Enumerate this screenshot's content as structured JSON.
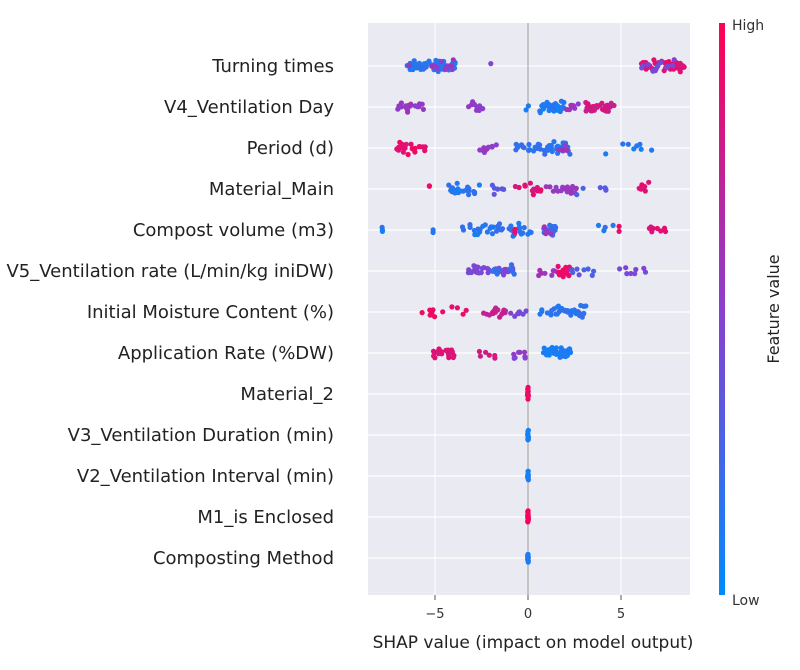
{
  "chart_data": {
    "type": "scatter",
    "subtype": "shap-beeswarm",
    "title": "",
    "xlabel": "SHAP value (impact on model output)",
    "xlim": [
      -8.7,
      9.1
    ],
    "x_ticks": [
      -5,
      0,
      5
    ],
    "x_tick_labels": [
      "−5",
      "0",
      "5"
    ],
    "grid": true,
    "colorbar": {
      "title": "Feature value",
      "high_label": "High",
      "low_label": "Low",
      "low_color": "#008bfb",
      "high_color": "#ff0052"
    },
    "features": [
      {
        "name": "Turning times",
        "points": [
          {
            "range": [
              -6.5,
              -3.9
            ],
            "n": 60,
            "t": 0.15
          },
          {
            "range": [
              -6.5,
              -3.9
            ],
            "n": 12,
            "t": 0.55
          },
          {
            "range": [
              -2.0,
              -2.0
            ],
            "n": 1,
            "t": 0.5
          },
          {
            "range": [
              6.1,
              8.4
            ],
            "n": 55,
            "t": 0.85
          },
          {
            "range": [
              6.1,
              8.4
            ],
            "n": 12,
            "t": 0.45
          }
        ]
      },
      {
        "name": "V4_Ventilation Day",
        "points": [
          {
            "range": [
              -7.0,
              -5.3
            ],
            "n": 18,
            "t": 0.55
          },
          {
            "range": [
              -3.2,
              -2.3
            ],
            "n": 10,
            "t": 0.55
          },
          {
            "range": [
              -0.5,
              0.5
            ],
            "n": 2,
            "t": 0.1
          },
          {
            "range": [
              0.6,
              2.0
            ],
            "n": 30,
            "t": 0.1
          },
          {
            "range": [
              2.0,
              3.0
            ],
            "n": 8,
            "t": 0.55
          },
          {
            "range": [
              3.0,
              4.7
            ],
            "n": 34,
            "t": 0.8
          }
        ]
      },
      {
        "name": "Period (d)",
        "points": [
          {
            "range": [
              -7.1,
              -5.5
            ],
            "n": 22,
            "t": 0.9
          },
          {
            "range": [
              -2.6,
              -1.7
            ],
            "n": 10,
            "t": 0.55
          },
          {
            "range": [
              -0.7,
              0.3
            ],
            "n": 10,
            "t": 0.2
          },
          {
            "range": [
              0.3,
              2.3
            ],
            "n": 34,
            "t": 0.15
          },
          {
            "range": [
              1.4,
              2.2
            ],
            "n": 6,
            "t": 0.55
          },
          {
            "range": [
              4.0,
              6.7
            ],
            "n": 8,
            "t": 0.1
          }
        ]
      },
      {
        "name": "Material_Main",
        "points": [
          {
            "range": [
              -4.3,
              -2.6
            ],
            "n": 24,
            "t": 0.15
          },
          {
            "range": [
              -5.3,
              -5.3
            ],
            "n": 2,
            "t": 0.9
          },
          {
            "range": [
              -2.0,
              -0.8
            ],
            "n": 6,
            "t": 0.3
          },
          {
            "range": [
              -0.8,
              0.8
            ],
            "n": 14,
            "t": 0.85
          },
          {
            "range": [
              0.8,
              2.6
            ],
            "n": 18,
            "t": 0.55
          },
          {
            "range": [
              2.6,
              4.4
            ],
            "n": 6,
            "t": 0.3
          },
          {
            "range": [
              5.9,
              6.7
            ],
            "n": 6,
            "t": 0.9
          }
        ]
      },
      {
        "name": "Compost volume (m3)",
        "points": [
          {
            "range": [
              -7.9,
              -7.8
            ],
            "n": 3,
            "t": 0.1
          },
          {
            "range": [
              -5.1,
              -5.1
            ],
            "n": 2,
            "t": 0.1
          },
          {
            "range": [
              -3.6,
              0.2
            ],
            "n": 42,
            "t": 0.15
          },
          {
            "range": [
              -0.7,
              -0.7
            ],
            "n": 5,
            "t": 0.9
          },
          {
            "range": [
              0.8,
              1.6
            ],
            "n": 14,
            "t": 0.2
          },
          {
            "range": [
              0.5,
              1.4
            ],
            "n": 4,
            "t": 0.6
          },
          {
            "range": [
              3.0,
              4.8
            ],
            "n": 4,
            "t": 0.15
          },
          {
            "range": [
              4.9,
              4.9
            ],
            "n": 2,
            "t": 0.9
          },
          {
            "range": [
              6.5,
              7.4
            ],
            "n": 8,
            "t": 0.85
          }
        ]
      },
      {
        "name": "V5_Ventilation rate (L/min/kg iniDW)",
        "points": [
          {
            "range": [
              -3.3,
              -0.8
            ],
            "n": 34,
            "t": 0.45
          },
          {
            "range": [
              -1.9,
              -0.7
            ],
            "n": 8,
            "t": 0.2
          },
          {
            "range": [
              0.3,
              1.6
            ],
            "n": 8,
            "t": 0.6
          },
          {
            "range": [
              1.6,
              2.3
            ],
            "n": 20,
            "t": 0.9
          },
          {
            "range": [
              2.3,
              3.6
            ],
            "n": 8,
            "t": 0.3
          },
          {
            "range": [
              4.8,
              6.4
            ],
            "n": 8,
            "t": 0.45
          }
        ]
      },
      {
        "name": "Initial Moisture Content (%)",
        "points": [
          {
            "range": [
              -5.7,
              -3.3
            ],
            "n": 12,
            "t": 0.9
          },
          {
            "range": [
              -2.4,
              -1.1
            ],
            "n": 18,
            "t": 0.75
          },
          {
            "range": [
              -1.0,
              0.0
            ],
            "n": 8,
            "t": 0.45
          },
          {
            "range": [
              0.6,
              3.2
            ],
            "n": 34,
            "t": 0.15
          }
        ]
      },
      {
        "name": "Application Rate (%DW)",
        "points": [
          {
            "range": [
              -5.1,
              -3.9
            ],
            "n": 22,
            "t": 0.85
          },
          {
            "range": [
              -3.1,
              -1.7
            ],
            "n": 6,
            "t": 0.8
          },
          {
            "range": [
              -0.8,
              0.0
            ],
            "n": 8,
            "t": 0.5
          },
          {
            "range": [
              0.8,
              2.3
            ],
            "n": 40,
            "t": 0.1
          }
        ]
      },
      {
        "name": "Material_2",
        "points": [
          {
            "range": [
              -0.02,
              0.02
            ],
            "n": 14,
            "t": 0.95
          }
        ]
      },
      {
        "name": "V3_Ventilation Duration (min)",
        "points": [
          {
            "range": [
              -0.02,
              0.02
            ],
            "n": 14,
            "t": 0.1
          }
        ]
      },
      {
        "name": "V2_Ventilation Interval (min)",
        "points": [
          {
            "range": [
              -0.02,
              0.02
            ],
            "n": 14,
            "t": 0.1
          }
        ]
      },
      {
        "name": "M1_is Enclosed",
        "points": [
          {
            "range": [
              -0.02,
              0.02
            ],
            "n": 14,
            "t": 0.95
          }
        ]
      },
      {
        "name": "Composting Method",
        "points": [
          {
            "range": [
              -0.02,
              0.02
            ],
            "n": 14,
            "t": 0.1
          }
        ]
      }
    ]
  }
}
